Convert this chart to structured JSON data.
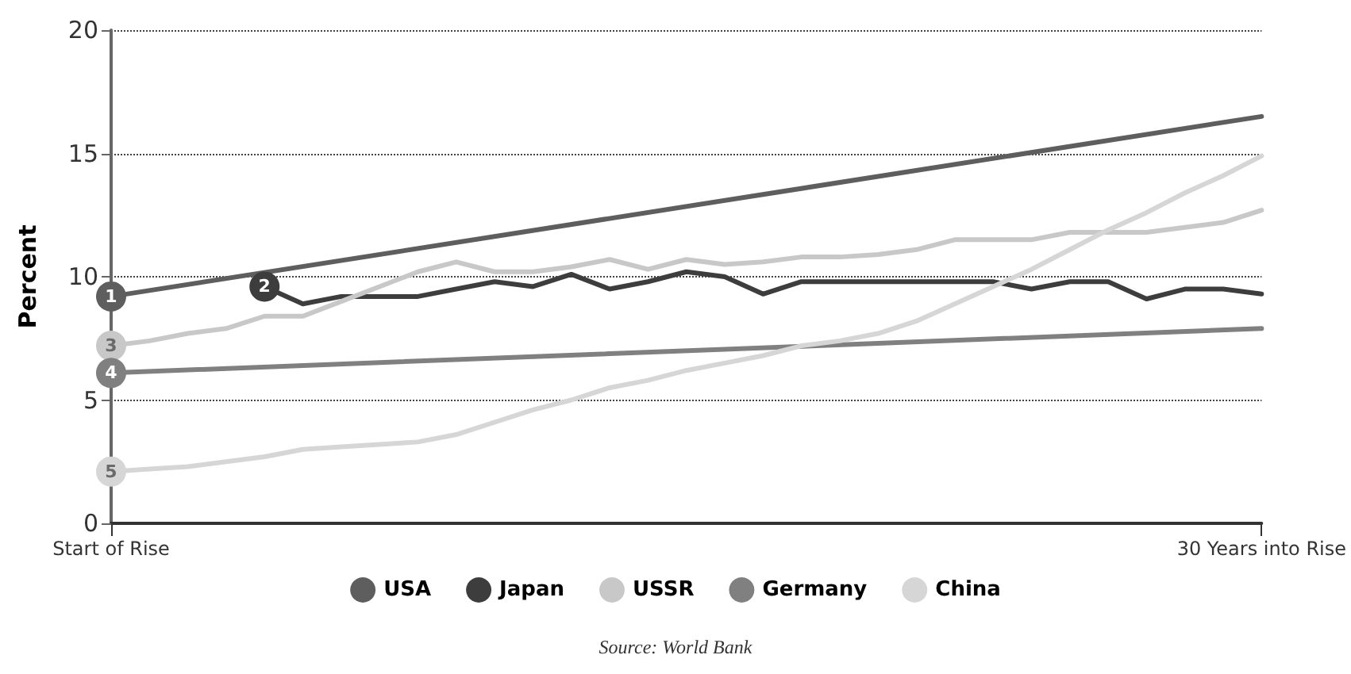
{
  "chart_data": {
    "type": "line",
    "ylabel": "Percent",
    "annotations": [
      "Source: World Bank",
      {
        "text": "1",
        "x": "Start of Rise",
        "y": 9.2
      },
      {
        "text": "2",
        "y": 9.6
      },
      {
        "text": "3",
        "x": "Start of Rise",
        "y": 7.2
      },
      {
        "text": "4",
        "x": "Start of Rise",
        "y": 6.1
      },
      {
        "text": "5",
        "x": "Start of Rise",
        "y": 2.1
      }
    ],
    "categories": [
      "Start of Rise",
      null,
      null,
      null,
      null,
      null,
      null,
      null,
      null,
      null,
      null,
      null,
      null,
      null,
      null,
      null,
      null,
      null,
      null,
      null,
      null,
      null,
      null,
      null,
      null,
      null,
      null,
      null,
      null,
      null,
      "30 Years into Rise"
    ],
    "ylim": [
      0,
      20
    ],
    "yticks": [
      0,
      5,
      10,
      15,
      20
    ],
    "grid": "y",
    "legend": "bottom",
    "line_style": "solid",
    "series": [
      {
        "name": "USA",
        "color": "#5e5e5e",
        "values": [
          9.2,
          null,
          null,
          null,
          null,
          null,
          null,
          null,
          null,
          null,
          null,
          null,
          null,
          null,
          null,
          null,
          null,
          null,
          null,
          null,
          null,
          null,
          null,
          null,
          null,
          null,
          null,
          null,
          null,
          null,
          16.5
        ]
      },
      {
        "name": "Japan",
        "color": "#3d3d3d",
        "values": [
          null,
          null,
          null,
          null,
          9.6,
          8.9,
          9.2,
          9.2,
          9.2,
          9.5,
          9.8,
          9.6,
          10.1,
          9.5,
          9.8,
          10.2,
          10.0,
          9.3,
          9.8,
          9.8,
          9.8,
          9.8,
          9.8,
          9.8,
          9.5,
          9.8,
          9.8,
          9.1,
          9.5,
          9.5,
          9.3
        ]
      },
      {
        "name": "USSR",
        "color": "#c8c8c8",
        "values": [
          7.2,
          7.4,
          7.7,
          7.9,
          8.4,
          8.4,
          9.0,
          9.6,
          10.2,
          10.6,
          10.2,
          10.2,
          10.4,
          10.7,
          10.3,
          10.7,
          10.5,
          10.6,
          10.8,
          10.8,
          10.9,
          11.1,
          11.5,
          11.5,
          11.5,
          11.8,
          11.8,
          11.8,
          12.0,
          12.2,
          12.7
        ]
      },
      {
        "name": "Germany",
        "color": "#808080",
        "values": [
          6.1,
          null,
          null,
          null,
          null,
          null,
          null,
          null,
          null,
          null,
          null,
          null,
          null,
          null,
          null,
          null,
          null,
          null,
          null,
          null,
          null,
          null,
          null,
          null,
          null,
          null,
          null,
          null,
          null,
          null,
          7.9
        ]
      },
      {
        "name": "China",
        "color": "#d6d6d6",
        "values": [
          2.1,
          2.2,
          2.3,
          2.5,
          2.7,
          3.0,
          3.1,
          3.2,
          3.3,
          3.6,
          4.1,
          4.6,
          5.0,
          5.5,
          5.8,
          6.2,
          6.5,
          6.8,
          7.2,
          7.4,
          7.7,
          8.2,
          8.9,
          9.6,
          10.3,
          11.1,
          11.9,
          12.6,
          13.4,
          14.1,
          14.9
        ]
      }
    ]
  }
}
